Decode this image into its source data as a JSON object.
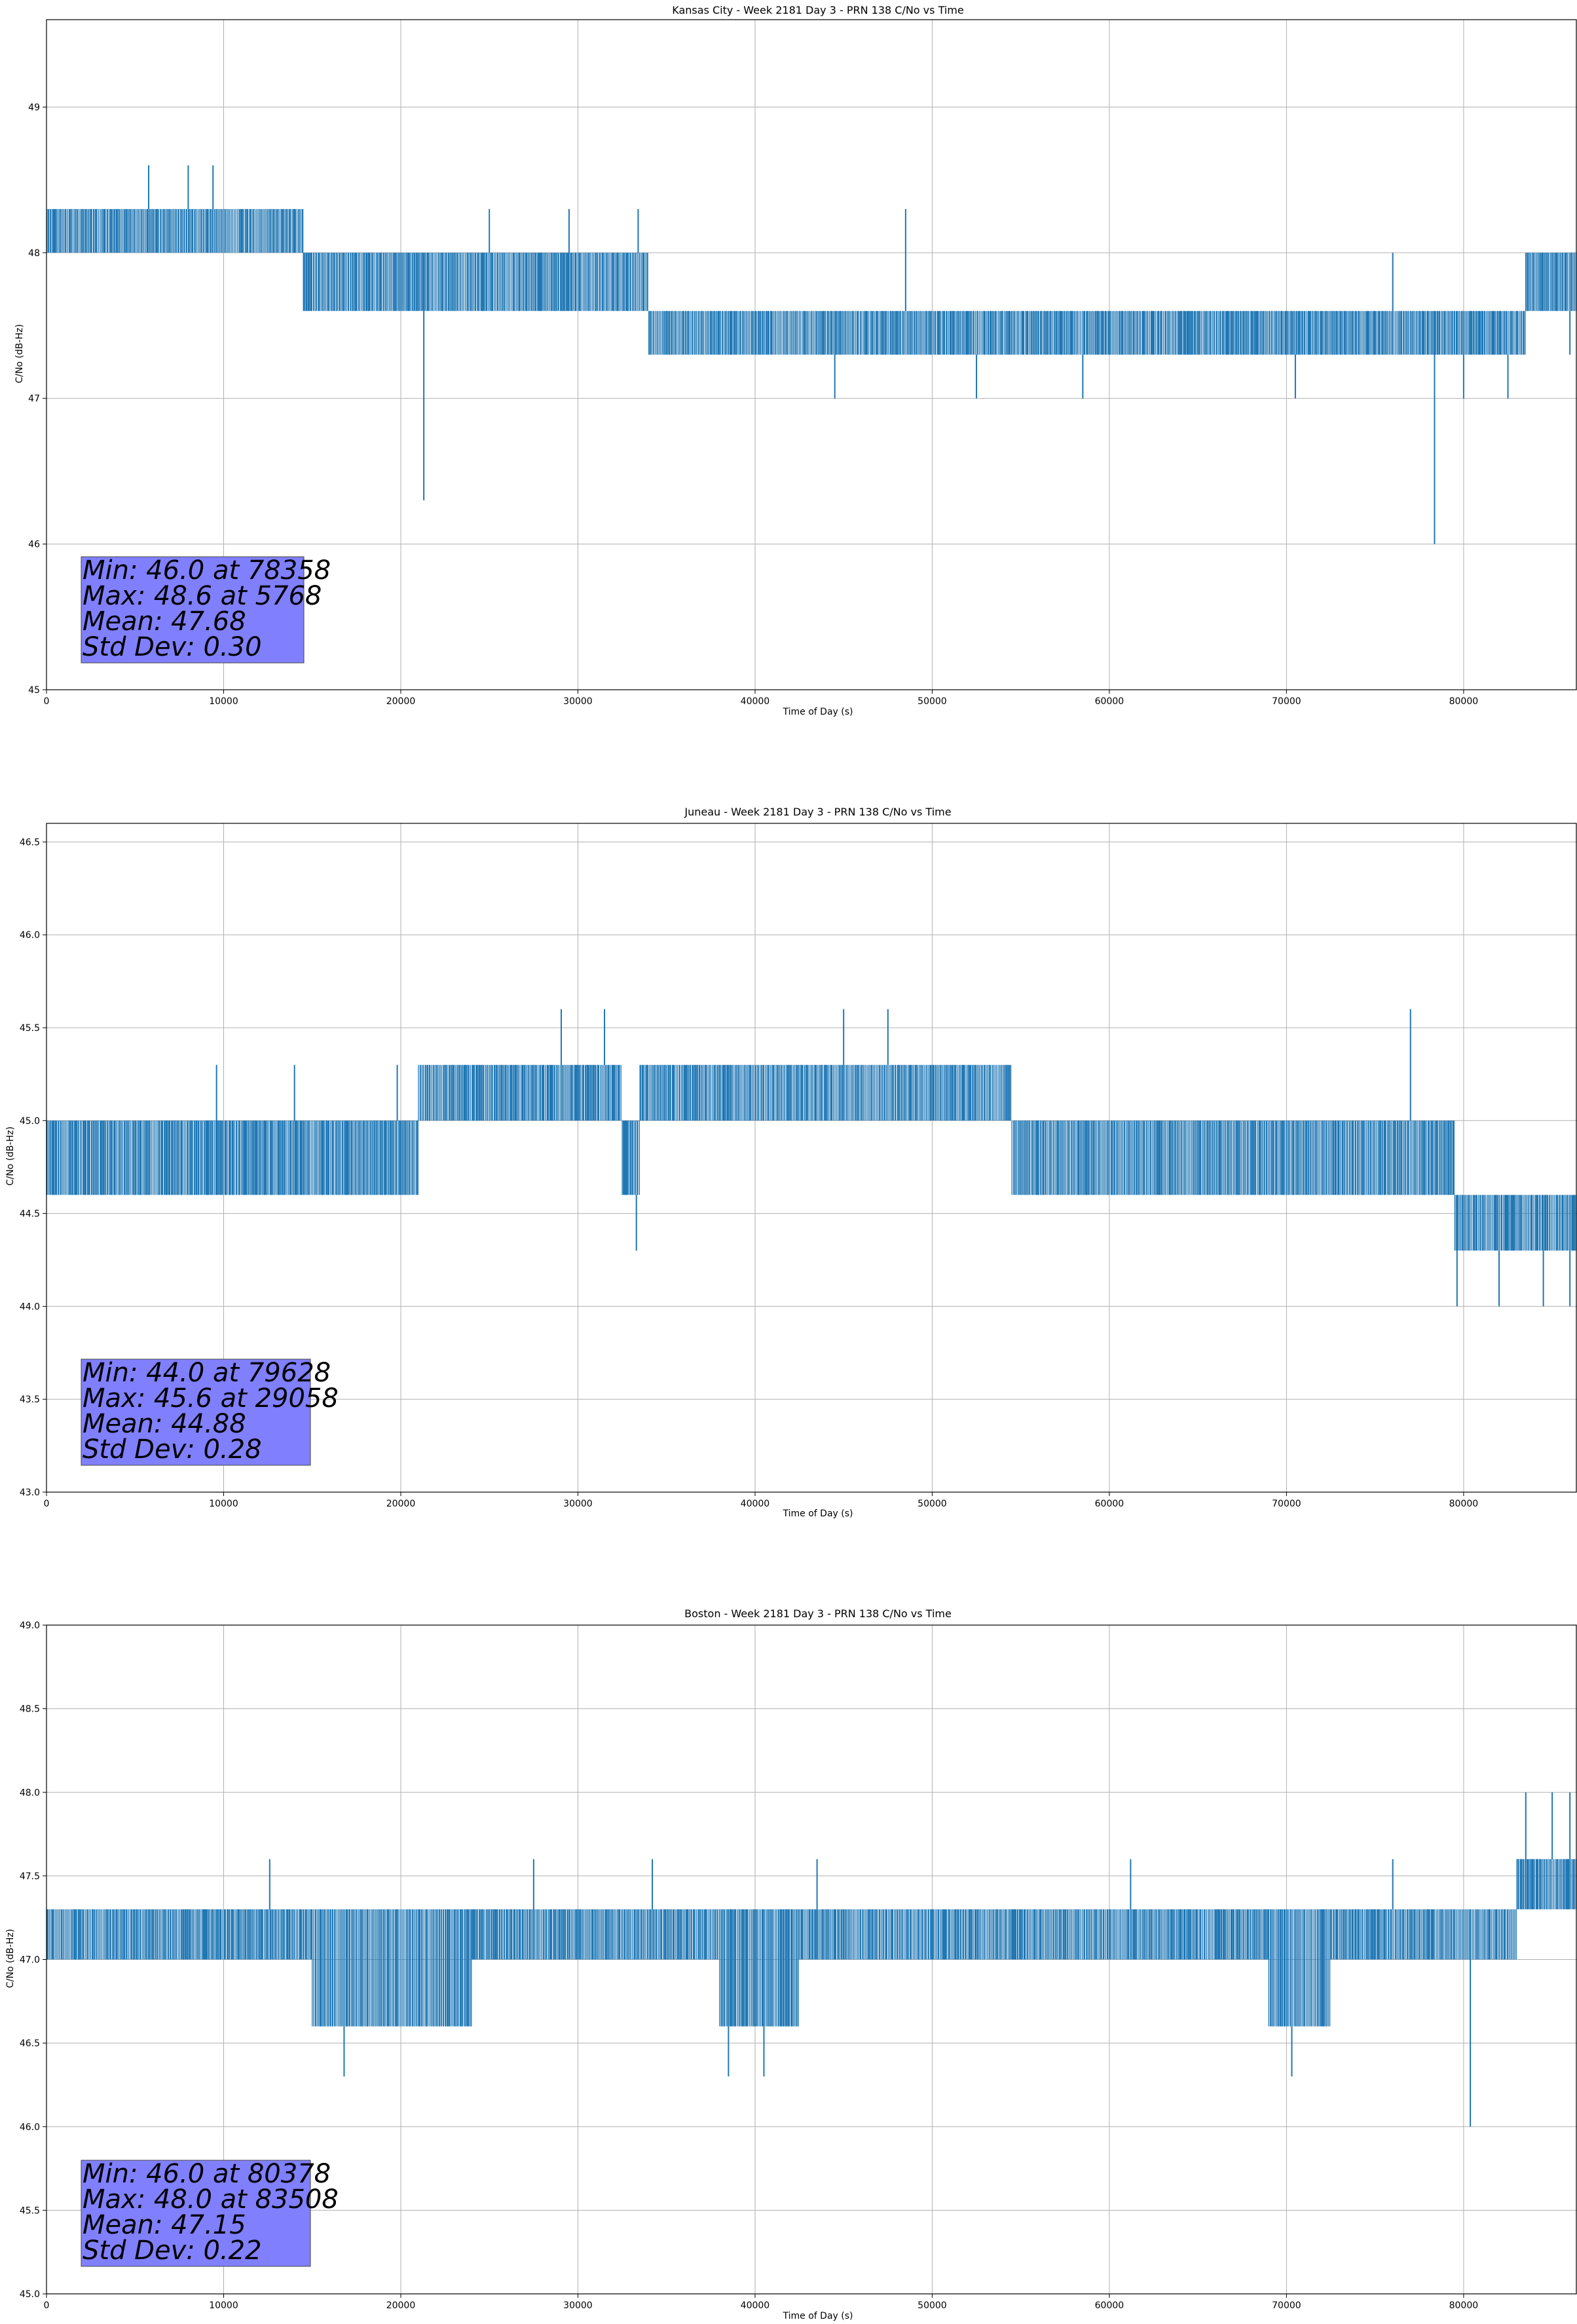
{
  "colors": {
    "series": "#1f77b4",
    "stats_box": "#8080ff",
    "grid": "#b0b0b0"
  },
  "chart_data": [
    {
      "type": "line",
      "title": "Kansas City - Week 2181 Day 3 - PRN 138 C/No vs Time",
      "xlabel": "Time of Day (s)",
      "ylabel": "C/No (dB-Hz)",
      "xlim": [
        0,
        86400
      ],
      "ylim": [
        45,
        49.6
      ],
      "xticks": [
        0,
        10000,
        20000,
        30000,
        40000,
        50000,
        60000,
        70000,
        80000
      ],
      "yticks": [
        45,
        46,
        47,
        48,
        49
      ],
      "ytick_labels": [
        "45",
        "46",
        "47",
        "48",
        "49"
      ],
      "grid": true,
      "series": [
        {
          "name": "PRN 138 C/No",
          "base_levels": [
            [
              0,
              14500,
              48.0,
              48.3
            ],
            [
              14500,
              34000,
              47.6,
              48.0
            ],
            [
              34000,
              46000,
              47.3,
              47.6
            ],
            [
              46000,
              51000,
              47.3,
              47.6
            ],
            [
              51000,
              61000,
              47.3,
              47.6
            ],
            [
              61000,
              78000,
              47.3,
              47.6
            ],
            [
              78000,
              83500,
              47.3,
              47.6
            ],
            [
              83500,
              86400,
              47.6,
              48.0
            ]
          ],
          "spikes": [
            [
              5768,
              48.6
            ],
            [
              8000,
              48.6
            ],
            [
              9400,
              48.6
            ],
            [
              25000,
              48.3
            ],
            [
              29500,
              48.3
            ],
            [
              33400,
              48.3
            ],
            [
              48500,
              48.3
            ],
            [
              76000,
              48.0
            ],
            [
              21300,
              46.3
            ],
            [
              78358,
              46.0
            ],
            [
              44500,
              47.0
            ],
            [
              52500,
              47.0
            ],
            [
              58500,
              47.0
            ],
            [
              70500,
              47.0
            ],
            [
              80000,
              47.0
            ],
            [
              82500,
              47.0
            ],
            [
              86000,
              47.3
            ]
          ]
        }
      ],
      "stats": {
        "min": "Min: 46.0 at 78358",
        "max": "Max: 48.6 at 5768",
        "mean": "Mean: 47.68",
        "std": "Std Dev: 0.30"
      }
    },
    {
      "type": "line",
      "title": "Juneau - Week 2181 Day 3 - PRN 138 C/No vs Time",
      "xlabel": "Time of Day (s)",
      "ylabel": "C/No (dB-Hz)",
      "xlim": [
        0,
        86400
      ],
      "ylim": [
        43.0,
        46.6
      ],
      "xticks": [
        0,
        10000,
        20000,
        30000,
        40000,
        50000,
        60000,
        70000,
        80000
      ],
      "yticks": [
        43.0,
        43.5,
        44.0,
        44.5,
        45.0,
        45.5,
        46.0,
        46.5
      ],
      "ytick_labels": [
        "43.0",
        "43.5",
        "44.0",
        "44.5",
        "45.0",
        "45.5",
        "46.0",
        "46.5"
      ],
      "grid": true,
      "series": [
        {
          "name": "PRN 138 C/No",
          "base_levels": [
            [
              0,
              21000,
              44.6,
              45.0
            ],
            [
              21000,
              32500,
              45.0,
              45.3
            ],
            [
              32500,
              33500,
              44.6,
              45.0
            ],
            [
              33500,
              54500,
              45.0,
              45.3
            ],
            [
              54500,
              79500,
              44.6,
              45.0
            ],
            [
              79500,
              86400,
              44.3,
              44.6
            ]
          ],
          "spikes": [
            [
              29058,
              45.6
            ],
            [
              31500,
              45.6
            ],
            [
              45000,
              45.6
            ],
            [
              47500,
              45.6
            ],
            [
              77000,
              45.6
            ],
            [
              9600,
              45.3
            ],
            [
              14000,
              45.3
            ],
            [
              19800,
              45.3
            ],
            [
              33300,
              44.3
            ],
            [
              79628,
              44.0
            ],
            [
              82000,
              44.0
            ],
            [
              84500,
              44.0
            ],
            [
              86000,
              44.0
            ]
          ]
        }
      ],
      "stats": {
        "min": "Min: 44.0 at 79628",
        "max": "Max: 45.6 at 29058",
        "mean": "Mean: 44.88",
        "std": "Std Dev: 0.28"
      }
    },
    {
      "type": "line",
      "title": "Boston - Week 2181 Day 3 - PRN 138 C/No vs Time",
      "xlabel": "Time of Day (s)",
      "ylabel": "C/No (dB-Hz)",
      "xlim": [
        0,
        86400
      ],
      "ylim": [
        45.0,
        49.0
      ],
      "xticks": [
        0,
        10000,
        20000,
        30000,
        40000,
        50000,
        60000,
        70000,
        80000
      ],
      "yticks": [
        45.0,
        45.5,
        46.0,
        46.5,
        47.0,
        47.5,
        48.0,
        48.5,
        49.0
      ],
      "ytick_labels": [
        "45.0",
        "45.5",
        "46.0",
        "46.5",
        "47.0",
        "47.5",
        "48.0",
        "48.5",
        "49.0"
      ],
      "grid": true,
      "series": [
        {
          "name": "PRN 138 C/No",
          "base_levels": [
            [
              0,
              15000,
              47.0,
              47.3
            ],
            [
              15000,
              24000,
              46.6,
              47.3
            ],
            [
              24000,
              38000,
              47.0,
              47.3
            ],
            [
              38000,
              42500,
              46.6,
              47.3
            ],
            [
              42500,
              69000,
              47.0,
              47.3
            ],
            [
              69000,
              72500,
              46.6,
              47.3
            ],
            [
              72500,
              83000,
              47.0,
              47.3
            ],
            [
              83000,
              86400,
              47.3,
              47.6
            ]
          ],
          "spikes": [
            [
              16800,
              46.3
            ],
            [
              38500,
              46.3
            ],
            [
              40500,
              46.3
            ],
            [
              70300,
              46.3
            ],
            [
              80378,
              46.0
            ],
            [
              83508,
              48.0
            ],
            [
              85000,
              48.0
            ],
            [
              86000,
              48.0
            ],
            [
              12600,
              47.6
            ],
            [
              27500,
              47.6
            ],
            [
              34200,
              47.6
            ],
            [
              43500,
              47.6
            ],
            [
              61200,
              47.6
            ],
            [
              76000,
              47.6
            ]
          ]
        }
      ],
      "stats": {
        "min": "Min: 46.0 at 80378",
        "max": "Max: 48.0 at 83508",
        "mean": "Mean: 47.15",
        "std": "Std Dev: 0.22"
      }
    }
  ]
}
